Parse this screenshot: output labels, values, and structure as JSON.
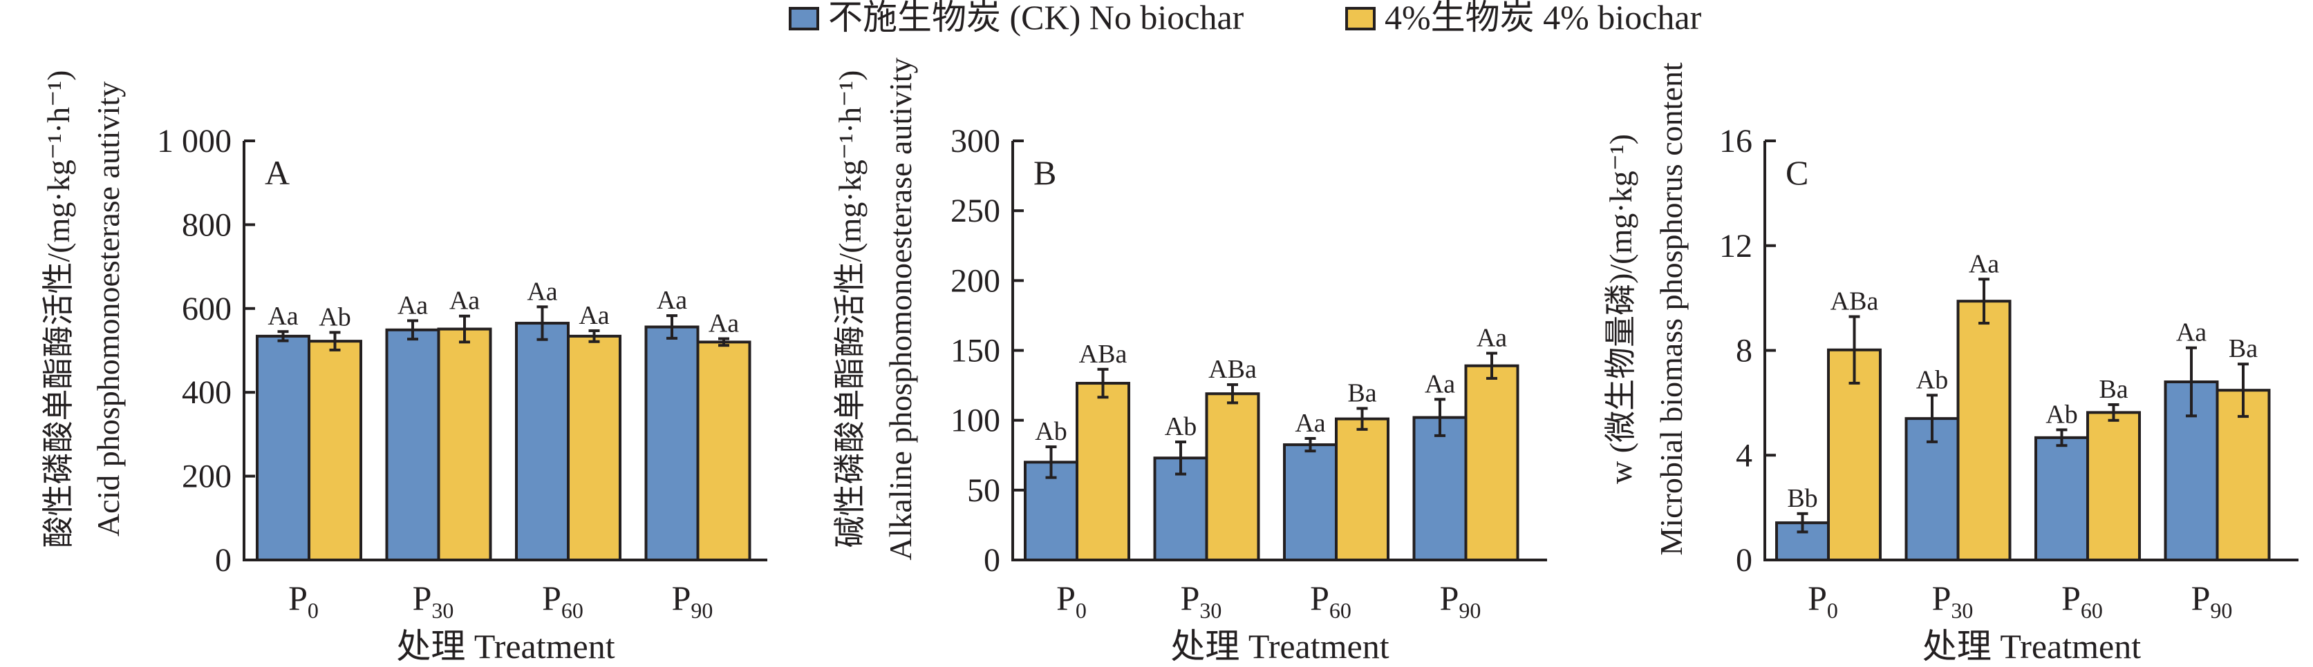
{
  "legend": {
    "items": [
      {
        "label": "不施生物炭 (CK) No biochar",
        "color": "#6690c3"
      },
      {
        "label": "4%生物炭 4% biochar",
        "color": "#efc44f"
      }
    ]
  },
  "colors": {
    "series_1": "#6690c3",
    "series_2": "#efc44f",
    "ink": "#231f20"
  },
  "chart_data": [
    {
      "type": "bar",
      "panel": "A",
      "title": "",
      "xlabel": "处理 Treatment",
      "ylabel_zh": "酸性磷酸单酯酶活性/(mg·kg⁻¹·h⁻¹)",
      "ylabel_en": "Acid phosphomonoesterase autivity",
      "categories": [
        {
          "base": "P",
          "sub": "0"
        },
        {
          "base": "P",
          "sub": "30"
        },
        {
          "base": "P",
          "sub": "60"
        },
        {
          "base": "P",
          "sub": "90"
        }
      ],
      "ylim": [
        0,
        1000
      ],
      "yticks": [
        0,
        200,
        400,
        600,
        800,
        1000
      ],
      "ytick_labels": [
        "0",
        "200",
        "400",
        "600",
        "800",
        "1 000"
      ],
      "grid": false,
      "legend_position": "top-center",
      "series": [
        {
          "name": "不施生物炭 (CK) No biochar",
          "values": [
            534,
            549,
            565,
            556
          ],
          "errors": [
            11,
            22,
            39,
            27
          ],
          "labels": [
            "Aa",
            "Aa",
            "Aa",
            "Aa"
          ]
        },
        {
          "name": "4%生物炭 4% biochar",
          "values": [
            522,
            551,
            534,
            520
          ],
          "errors": [
            21,
            31,
            13,
            8
          ],
          "labels": [
            "Ab",
            "Aa",
            "Aa",
            "Aa"
          ]
        }
      ]
    },
    {
      "type": "bar",
      "panel": "B",
      "title": "",
      "xlabel": "处理 Treatment",
      "ylabel_zh": "碱性磷酸单酯酶活性/(mg·kg⁻¹·h⁻¹)",
      "ylabel_en": "Alkaline phosphomonoesterase autivity",
      "categories": [
        {
          "base": "P",
          "sub": "0"
        },
        {
          "base": "P",
          "sub": "30"
        },
        {
          "base": "P",
          "sub": "60"
        },
        {
          "base": "P",
          "sub": "90"
        }
      ],
      "ylim": [
        0,
        300
      ],
      "yticks": [
        0,
        50,
        100,
        150,
        200,
        250,
        300
      ],
      "ytick_labels": [
        "0",
        "50",
        "100",
        "150",
        "200",
        "250",
        "300"
      ],
      "grid": false,
      "legend_position": "top-center",
      "series": [
        {
          "name": "不施生物炭 (CK) No biochar",
          "values": [
            70,
            73,
            82.5,
            102
          ],
          "errors": [
            11,
            11.5,
            4.5,
            13
          ],
          "labels": [
            "Ab",
            "Ab",
            "Aa",
            "Aa"
          ]
        },
        {
          "name": "4%生物炭 4% biochar",
          "values": [
            126.5,
            119,
            101,
            139
          ],
          "errors": [
            10,
            6.5,
            7.5,
            9
          ],
          "labels": [
            "ABa",
            "ABa",
            "Ba",
            "Aa"
          ]
        }
      ]
    },
    {
      "type": "bar",
      "panel": "C",
      "title": "",
      "xlabel": "处理 Treatment",
      "ylabel_zh": "w (微生物量磷)/(mg·kg⁻¹)",
      "ylabel_en": "Microbial biomass phosphorus content",
      "categories": [
        {
          "base": "P",
          "sub": "0"
        },
        {
          "base": "P",
          "sub": "30"
        },
        {
          "base": "P",
          "sub": "60"
        },
        {
          "base": "P",
          "sub": "90"
        }
      ],
      "ylim": [
        0,
        16
      ],
      "yticks": [
        0,
        4,
        8,
        12,
        16
      ],
      "ytick_labels": [
        "0",
        "4",
        "8",
        "12",
        "16"
      ],
      "grid": false,
      "legend_position": "top-center",
      "series": [
        {
          "name": "不施生物炭 (CK) No biochar",
          "values": [
            1.42,
            5.4,
            4.67,
            6.8
          ],
          "errors": [
            0.35,
            0.89,
            0.3,
            1.3
          ],
          "labels": [
            "Bb",
            "Ab",
            "Ab",
            "Aa"
          ]
        },
        {
          "name": "4%生物炭 4% biochar",
          "values": [
            8.02,
            9.88,
            5.63,
            6.48
          ],
          "errors": [
            1.27,
            0.84,
            0.3,
            1.0
          ],
          "labels": [
            "ABa",
            "Aa",
            "Ba",
            "Ba"
          ]
        }
      ]
    }
  ]
}
